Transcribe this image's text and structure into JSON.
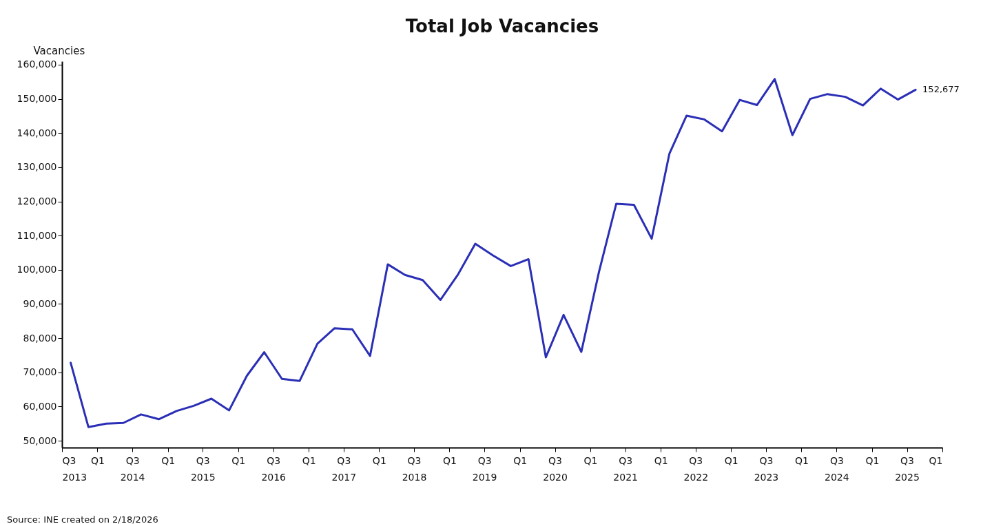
{
  "chart_data": {
    "type": "line",
    "title": "Total Job Vacancies",
    "ylabel": "Vacancies",
    "x": [
      "2013-08-15",
      "2013-11-15",
      "2014-02-15",
      "2014-05-15",
      "2014-08-15",
      "2014-11-15",
      "2015-02-15",
      "2015-05-15",
      "2015-08-15",
      "2015-11-15",
      "2016-02-15",
      "2016-05-15",
      "2016-08-15",
      "2016-11-15",
      "2017-02-15",
      "2017-05-15",
      "2017-08-15",
      "2017-11-15",
      "2018-02-15",
      "2018-05-15",
      "2018-08-15",
      "2018-11-15",
      "2019-02-15",
      "2019-05-15",
      "2019-08-15",
      "2019-11-15",
      "2020-02-15",
      "2020-05-15",
      "2020-08-15",
      "2020-11-15",
      "2021-02-15",
      "2021-05-15",
      "2021-08-15",
      "2021-11-15",
      "2022-02-15",
      "2022-05-15",
      "2022-08-15",
      "2022-11-15",
      "2023-02-15",
      "2023-05-15",
      "2023-08-15",
      "2023-11-15",
      "2024-02-15",
      "2024-05-15",
      "2024-08-15",
      "2024-11-15",
      "2025-02-15",
      "2025-05-15",
      "2025-08-15"
    ],
    "series": [
      {
        "color": "#2b2fb5",
        "values": [
          72800,
          54000,
          55000,
          55200,
          57700,
          56300,
          58700,
          60200,
          62300,
          58900,
          69000,
          75900,
          68100,
          67500,
          78400,
          82900,
          82600,
          74800,
          101600,
          98500,
          97000,
          91200,
          98700,
          107600,
          104200,
          101100,
          103100,
          74400,
          86800,
          76000,
          99500,
          119300,
          119000,
          109100,
          134000,
          145100,
          144000,
          140500,
          149700,
          148200,
          155800,
          139400,
          150000,
          151400,
          150600,
          148100,
          153000,
          149800,
          152677
        ]
      }
    ],
    "ylim": [
      48000,
      161000
    ],
    "yticks": [
      {
        "value": 50000,
        "label": "50,000"
      },
      {
        "value": 60000,
        "label": "60,000"
      },
      {
        "value": 70000,
        "label": "70,000"
      },
      {
        "value": 80000,
        "label": "80,000"
      },
      {
        "value": 90000,
        "label": "90,000"
      },
      {
        "value": 100000,
        "label": "100,000"
      },
      {
        "value": 110000,
        "label": "110,000"
      },
      {
        "value": 120000,
        "label": "120,000"
      },
      {
        "value": 130000,
        "label": "130,000"
      },
      {
        "value": 140000,
        "label": "140,000"
      },
      {
        "value": 150000,
        "label": "150,000"
      },
      {
        "value": 160000,
        "label": "160,000"
      }
    ],
    "xlim": [
      "2013-07-01",
      "2026-01-01"
    ],
    "xticks": [
      {
        "value": "2013-07-01",
        "label": "Q3\n2013"
      },
      {
        "value": "2014-01-01",
        "label": "Q1"
      },
      {
        "value": "2014-07-01",
        "label": "Q3\n2014"
      },
      {
        "value": "2015-01-01",
        "label": "Q1"
      },
      {
        "value": "2015-07-01",
        "label": "Q3\n2015"
      },
      {
        "value": "2016-01-01",
        "label": "Q1"
      },
      {
        "value": "2016-07-01",
        "label": "Q3\n2016"
      },
      {
        "value": "2017-01-01",
        "label": "Q1"
      },
      {
        "value": "2017-07-01",
        "label": "Q3\n2017"
      },
      {
        "value": "2018-01-01",
        "label": "Q1"
      },
      {
        "value": "2018-07-01",
        "label": "Q3\n2018"
      },
      {
        "value": "2019-01-01",
        "label": "Q1"
      },
      {
        "value": "2019-07-01",
        "label": "Q3\n2019"
      },
      {
        "value": "2020-01-01",
        "label": "Q1"
      },
      {
        "value": "2020-07-01",
        "label": "Q3\n2020"
      },
      {
        "value": "2021-01-01",
        "label": "Q1"
      },
      {
        "value": "2021-07-01",
        "label": "Q3\n2021"
      },
      {
        "value": "2022-01-01",
        "label": "Q1"
      },
      {
        "value": "2022-07-01",
        "label": "Q3\n2022"
      },
      {
        "value": "2023-01-01",
        "label": "Q1"
      },
      {
        "value": "2023-07-01",
        "label": "Q3\n2023"
      },
      {
        "value": "2024-01-01",
        "label": "Q1"
      },
      {
        "value": "2024-07-01",
        "label": "Q3\n2024"
      },
      {
        "value": "2025-01-01",
        "label": "Q1"
      },
      {
        "value": "2025-07-01",
        "label": "Q3\n2025"
      },
      {
        "value": "2026-01-01",
        "label": "Q1"
      }
    ],
    "grid": false,
    "marker": "none",
    "line_style": "solid",
    "annotations": [
      {
        "text": "152,677",
        "x": "2025-08-15",
        "y": 152677
      },
      "Source: INE created on 2/18/2026"
    ]
  }
}
